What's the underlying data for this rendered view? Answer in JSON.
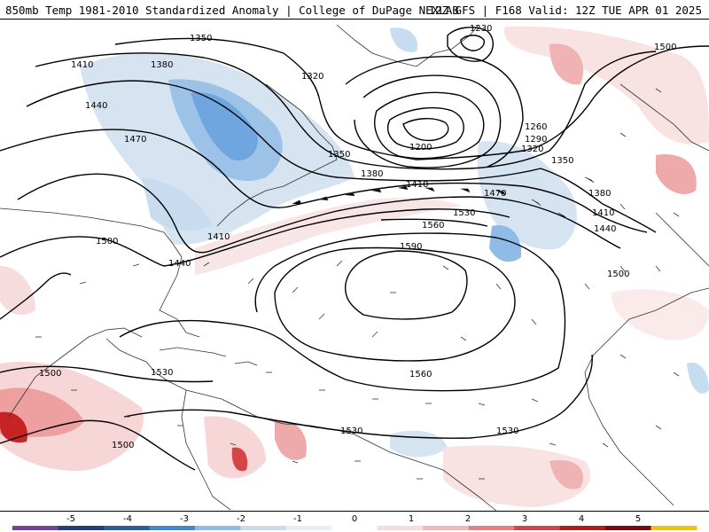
{
  "header": {
    "title_left": "850mb Temp 1981-2010 Standardized Anomaly | College of DuPage NEXLAB",
    "title_right": "12Z GFS | F168 Valid: 12Z TUE APR 01 2025"
  },
  "contour_labels": [
    {
      "text": "1350"
    },
    {
      "text": "1380"
    },
    {
      "text": "1410"
    },
    {
      "text": "1320"
    },
    {
      "text": "1230"
    },
    {
      "text": "1500"
    },
    {
      "text": "1440"
    },
    {
      "text": "1470"
    },
    {
      "text": "1260"
    },
    {
      "text": "1290"
    },
    {
      "text": "1320"
    },
    {
      "text": "1350"
    },
    {
      "text": "1200"
    },
    {
      "text": "1350"
    },
    {
      "text": "1380"
    },
    {
      "text": "1410"
    },
    {
      "text": "1470"
    },
    {
      "text": "1380"
    },
    {
      "text": "1410"
    },
    {
      "text": "1440"
    },
    {
      "text": "1530"
    },
    {
      "text": "1560"
    },
    {
      "text": "1590"
    },
    {
      "text": "1500"
    },
    {
      "text": "1410"
    },
    {
      "text": "1440"
    },
    {
      "text": "1500"
    },
    {
      "text": "1500"
    },
    {
      "text": "1530"
    },
    {
      "text": "1560"
    },
    {
      "text": "1500"
    },
    {
      "text": "1530"
    },
    {
      "text": "1530"
    }
  ],
  "colorbar": {
    "ticks": [
      "-5",
      "-4",
      "-3",
      "-2",
      "-1",
      "0",
      "1",
      "2",
      "3",
      "4",
      "5"
    ],
    "colors": [
      "#7b3fa0",
      "#1f3f82",
      "#24609f",
      "#3b8ad2",
      "#8fbbe6",
      "#c6dcef",
      "#e6eff8",
      "#ffffff",
      "#f6dcdc",
      "#f3b7b7",
      "#e58080",
      "#d64545",
      "#b81a1a",
      "#7d0a0a",
      "#f5c400"
    ]
  }
}
